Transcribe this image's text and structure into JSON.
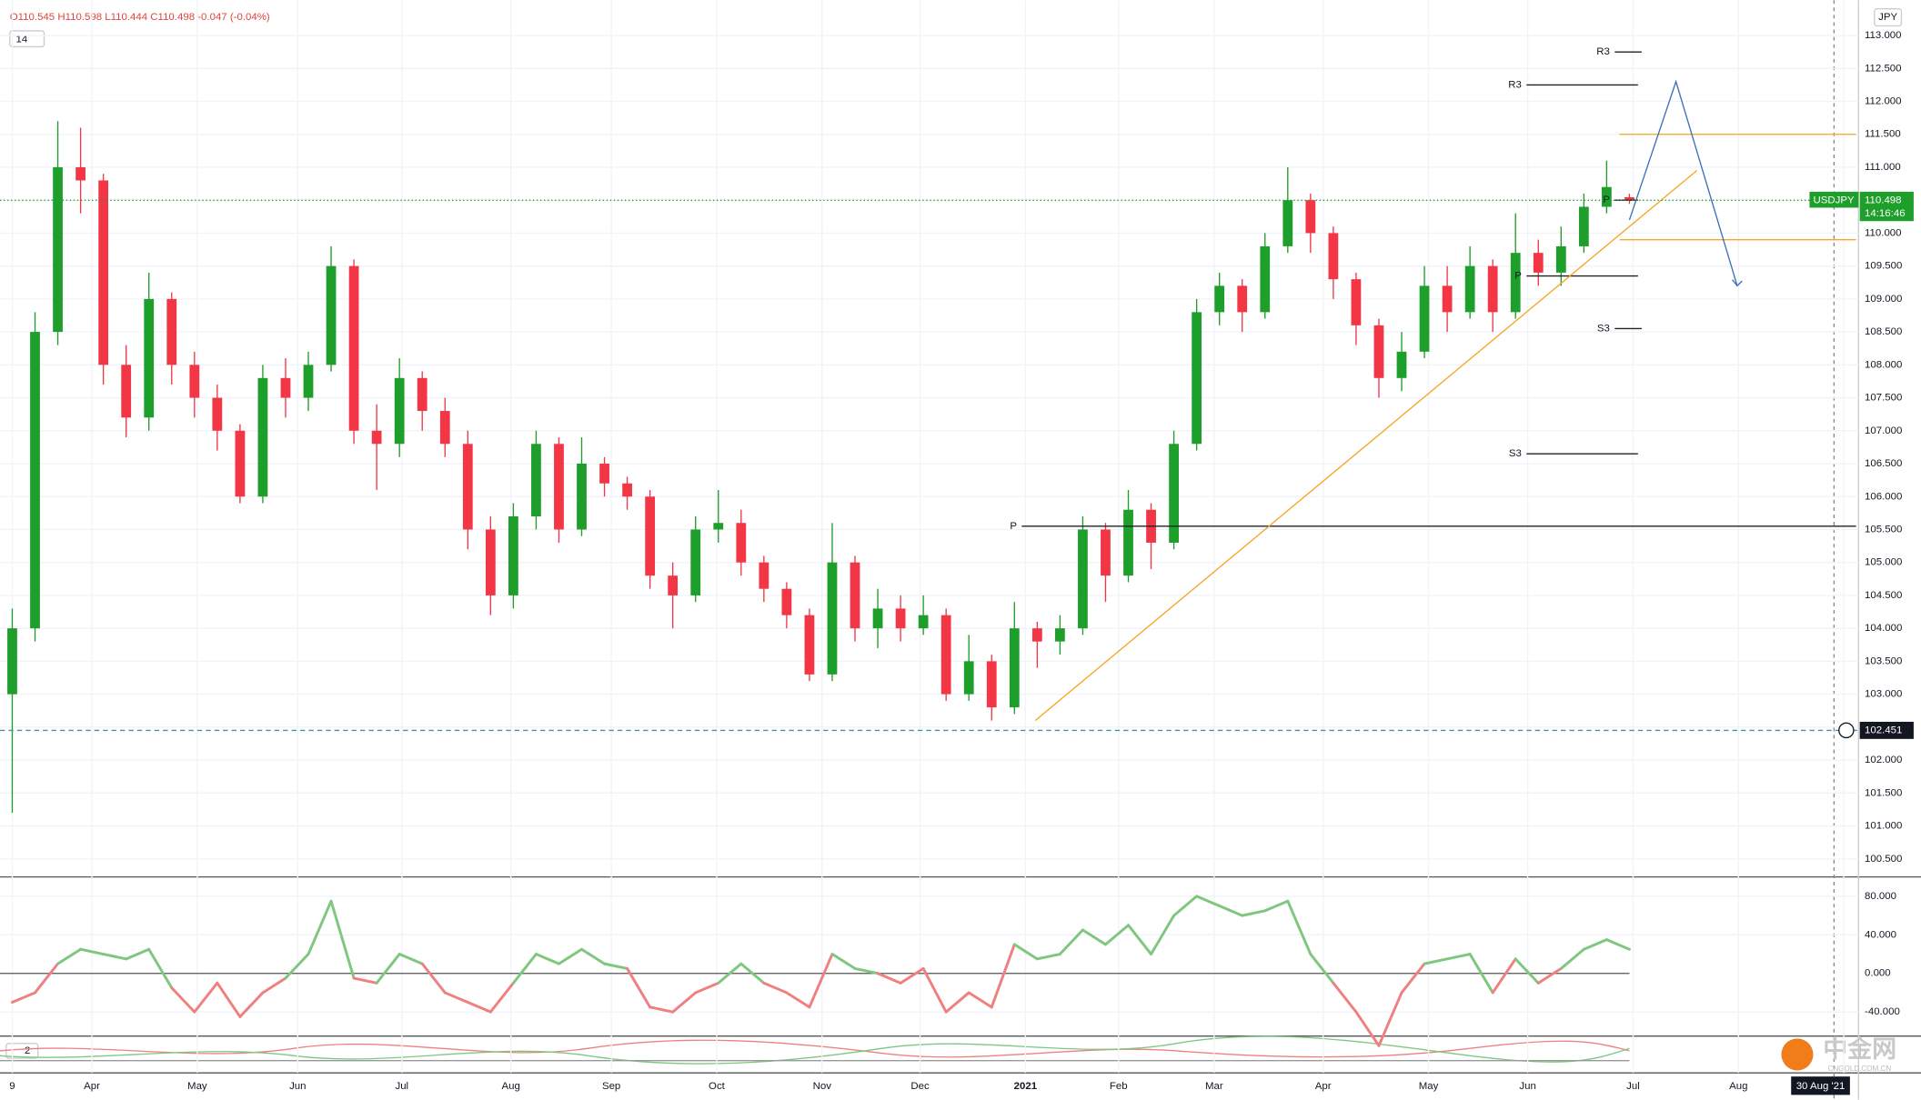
{
  "header": {
    "ohlc": "O110.545 H110.598 L110.444 C110.498 -0.047 (-0.04%)",
    "indicator_1": "14",
    "indicator_2": "2",
    "currency": "JPY"
  },
  "chart_data": [
    {
      "type": "candlestick",
      "symbol": "USDJPY",
      "last_price": 110.498,
      "countdown": "14:16:46",
      "marker_price": 102.451,
      "up_color": "#1e9e2a",
      "down_color": "#f23645",
      "ohlc": [
        [
          103.0,
          104.3,
          101.2,
          104.0
        ],
        [
          104.0,
          108.8,
          103.8,
          108.5
        ],
        [
          108.5,
          111.7,
          108.3,
          111.0
        ],
        [
          111.0,
          111.6,
          110.3,
          110.8
        ],
        [
          110.8,
          110.9,
          107.7,
          108.0
        ],
        [
          108.0,
          108.3,
          106.9,
          107.2
        ],
        [
          107.2,
          109.4,
          107.0,
          109.0
        ],
        [
          109.0,
          109.1,
          107.7,
          108.0
        ],
        [
          108.0,
          108.2,
          107.2,
          107.5
        ],
        [
          107.5,
          107.7,
          106.7,
          107.0
        ],
        [
          107.0,
          107.1,
          105.9,
          106.0
        ],
        [
          106.0,
          108.0,
          105.9,
          107.8
        ],
        [
          107.8,
          108.1,
          107.2,
          107.5
        ],
        [
          107.5,
          108.2,
          107.3,
          108.0
        ],
        [
          108.0,
          109.8,
          107.9,
          109.5
        ],
        [
          109.5,
          109.6,
          106.8,
          107.0
        ],
        [
          107.0,
          107.4,
          106.1,
          106.8
        ],
        [
          106.8,
          108.1,
          106.6,
          107.8
        ],
        [
          107.8,
          107.9,
          107.0,
          107.3
        ],
        [
          107.3,
          107.5,
          106.6,
          106.8
        ],
        [
          106.8,
          107.0,
          105.2,
          105.5
        ],
        [
          105.5,
          105.7,
          104.2,
          104.5
        ],
        [
          104.5,
          105.9,
          104.3,
          105.7
        ],
        [
          105.7,
          107.0,
          105.5,
          106.8
        ],
        [
          106.8,
          106.9,
          105.3,
          105.5
        ],
        [
          105.5,
          106.9,
          105.4,
          106.5
        ],
        [
          106.5,
          106.6,
          106.0,
          106.2
        ],
        [
          106.2,
          106.3,
          105.8,
          106.0
        ],
        [
          106.0,
          106.1,
          104.6,
          104.8
        ],
        [
          104.8,
          105.0,
          104.0,
          104.5
        ],
        [
          104.5,
          105.7,
          104.4,
          105.5
        ],
        [
          105.5,
          106.1,
          105.3,
          105.6
        ],
        [
          105.6,
          105.8,
          104.8,
          105.0
        ],
        [
          105.0,
          105.1,
          104.4,
          104.6
        ],
        [
          104.6,
          104.7,
          104.0,
          104.2
        ],
        [
          104.2,
          104.3,
          103.2,
          103.3
        ],
        [
          103.3,
          105.6,
          103.2,
          105.0
        ],
        [
          105.0,
          105.1,
          103.8,
          104.0
        ],
        [
          104.0,
          104.6,
          103.7,
          104.3
        ],
        [
          104.3,
          104.5,
          103.8,
          104.0
        ],
        [
          104.0,
          104.5,
          103.9,
          104.2
        ],
        [
          104.2,
          104.3,
          102.9,
          103.0
        ],
        [
          103.0,
          103.9,
          102.9,
          103.5
        ],
        [
          103.5,
          103.6,
          102.6,
          102.8
        ],
        [
          102.8,
          104.4,
          102.7,
          104.0
        ],
        [
          104.0,
          104.1,
          103.4,
          103.8
        ],
        [
          103.8,
          104.2,
          103.6,
          104.0
        ],
        [
          104.0,
          105.7,
          103.9,
          105.5
        ],
        [
          105.5,
          105.6,
          104.4,
          104.8
        ],
        [
          104.8,
          106.1,
          104.7,
          105.8
        ],
        [
          105.8,
          105.9,
          104.9,
          105.3
        ],
        [
          105.3,
          107.0,
          105.2,
          106.8
        ],
        [
          106.8,
          109.0,
          106.7,
          108.8
        ],
        [
          108.8,
          109.4,
          108.6,
          109.2
        ],
        [
          109.2,
          109.3,
          108.5,
          108.8
        ],
        [
          108.8,
          110.0,
          108.7,
          109.8
        ],
        [
          109.8,
          111.0,
          109.7,
          110.5
        ],
        [
          110.5,
          110.6,
          109.7,
          110.0
        ],
        [
          110.0,
          110.1,
          109.0,
          109.3
        ],
        [
          109.3,
          109.4,
          108.3,
          108.6
        ],
        [
          108.6,
          108.7,
          107.5,
          107.8
        ],
        [
          107.8,
          108.5,
          107.6,
          108.2
        ],
        [
          108.2,
          109.5,
          108.1,
          109.2
        ],
        [
          109.2,
          109.5,
          108.5,
          108.8
        ],
        [
          108.8,
          109.8,
          108.7,
          109.5
        ],
        [
          109.5,
          109.6,
          108.5,
          108.8
        ],
        [
          108.8,
          110.3,
          108.7,
          109.7
        ],
        [
          109.7,
          109.9,
          109.2,
          109.4
        ],
        [
          109.4,
          110.1,
          109.2,
          109.8
        ],
        [
          109.8,
          110.6,
          109.7,
          110.4
        ],
        [
          110.4,
          111.1,
          110.3,
          110.7
        ],
        [
          110.545,
          110.598,
          110.444,
          110.498
        ]
      ],
      "ylim": [
        100.3,
        113.35
      ],
      "yticks": [
        {
          "value": 100.5,
          "label": "100.500"
        },
        {
          "value": 101,
          "label": "101.000"
        },
        {
          "value": 101.5,
          "label": "101.500"
        },
        {
          "value": 102,
          "label": "102.000"
        },
        {
          "value": 102.5,
          "label": "102.500"
        },
        {
          "value": 103,
          "label": "103.000"
        },
        {
          "value": 103.5,
          "label": "103.500"
        },
        {
          "value": 104,
          "label": "104.000"
        },
        {
          "value": 104.5,
          "label": "104.500"
        },
        {
          "value": 105,
          "label": "105.000"
        },
        {
          "value": 105.5,
          "label": "105.500"
        },
        {
          "value": 106,
          "label": "106.000"
        },
        {
          "value": 106.5,
          "label": "106.500"
        },
        {
          "value": 107,
          "label": "107.000"
        },
        {
          "value": 107.5,
          "label": "107.500"
        },
        {
          "value": 108,
          "label": "108.000"
        },
        {
          "value": 108.5,
          "label": "108.500"
        },
        {
          "value": 109,
          "label": "109.000"
        },
        {
          "value": 109.5,
          "label": "109.500"
        },
        {
          "value": 110,
          "label": "110.000"
        },
        {
          "value": 110.5,
          "label": "110.500"
        },
        {
          "value": 111,
          "label": "111.000"
        },
        {
          "value": 111.5,
          "label": "111.500"
        },
        {
          "value": 112,
          "label": "112.000"
        },
        {
          "value": 112.5,
          "label": "112.500"
        },
        {
          "value": 113,
          "label": "113.000"
        }
      ],
      "levels": [
        {
          "label": "R3",
          "price": 112.75
        },
        {
          "label": "R3",
          "price": 112.25
        },
        {
          "label": "P",
          "price": 110.5
        },
        {
          "label": "P",
          "price": 109.35
        },
        {
          "label": "S3",
          "price": 108.55
        },
        {
          "label": "S3",
          "price": 106.65
        },
        {
          "label": "P",
          "price": 105.55
        }
      ],
      "horizontal_lines": [
        111.5,
        109.9
      ],
      "trendline": [
        102.6,
        110.95
      ],
      "projection": [
        110.2,
        112.3,
        109.2
      ],
      "x_labels": [
        "9",
        "Apr",
        "May",
        "Jun",
        "Jul",
        "Aug",
        "Sep",
        "Oct",
        "Nov",
        "Dec",
        "2021",
        "Feb",
        "Mar",
        "Apr",
        "May",
        "Jun",
        "Jul",
        "Aug",
        "A"
      ],
      "date_label": "30 Aug '21"
    },
    {
      "type": "line",
      "values": [
        -30,
        -20,
        10,
        25,
        20,
        15,
        25,
        -15,
        -40,
        -10,
        -45,
        -20,
        -5,
        20,
        75,
        -5,
        -10,
        20,
        10,
        -20,
        -30,
        -40,
        -10,
        20,
        10,
        25,
        10,
        5,
        -35,
        -40,
        -20,
        -10,
        10,
        -10,
        -20,
        -35,
        20,
        5,
        0,
        -10,
        5,
        -40,
        -20,
        -35,
        30,
        15,
        20,
        45,
        30,
        50,
        20,
        60,
        80,
        70,
        60,
        65,
        75,
        20,
        -10,
        -40,
        -75,
        -20,
        10,
        15,
        20,
        -20,
        15,
        -10,
        5,
        25,
        35,
        25
      ],
      "up_color": "#7fc77f",
      "down_color": "#f08080",
      "ylim": [
        -60,
        95
      ],
      "yticks": [
        {
          "value": -40,
          "label": "-40.000"
        },
        {
          "value": 0,
          "label": "0.000"
        },
        {
          "value": 40,
          "label": "40.000"
        },
        {
          "value": 80,
          "label": "80.000"
        }
      ]
    }
  ],
  "watermark": {
    "name": "中金网",
    "site": "CNGOLD.COM.CN"
  }
}
